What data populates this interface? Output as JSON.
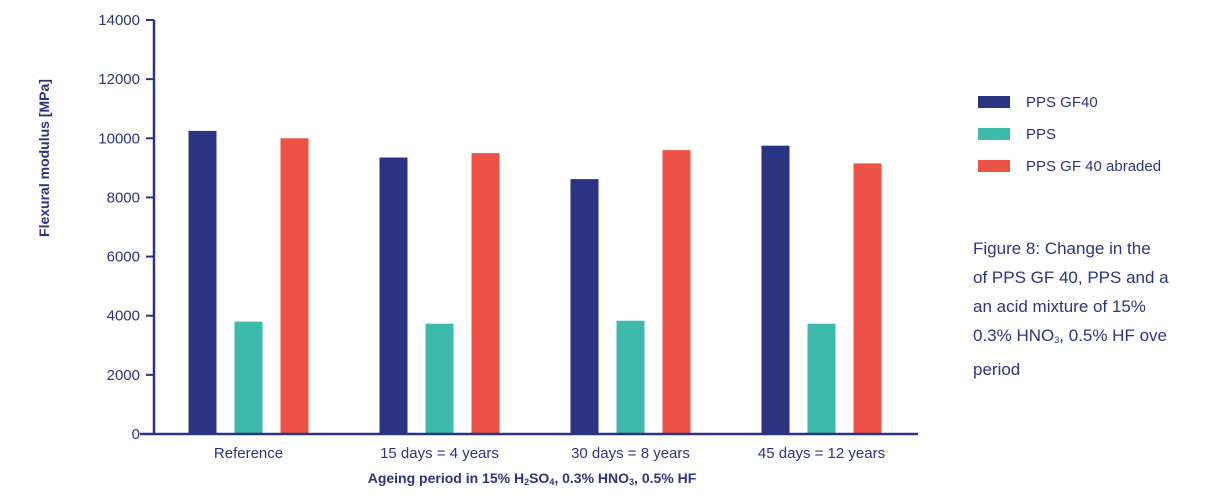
{
  "chart_data": {
    "type": "bar",
    "categories": [
      "Reference",
      "15 days = 4 years",
      "30 days = 8 years",
      "45 days = 12 years"
    ],
    "series": [
      {
        "name": "PPS GF40",
        "color": "#2b3483",
        "values": [
          10250,
          9350,
          8620,
          9750
        ]
      },
      {
        "name": "PPS",
        "color": "#3cbaab",
        "values": [
          3800,
          3730,
          3830,
          3730
        ]
      },
      {
        "name": "PPS GF 40 abraded",
        "color": "#ec5246",
        "values": [
          10000,
          9500,
          9600,
          9150
        ]
      }
    ],
    "ylabel": "Flexural modulus [MPa]",
    "xlabel_parts": [
      "Ageing period in 15% H",
      "2",
      "SO",
      "4",
      ", 0.3% HNO",
      "3",
      ", 0.5% HF"
    ],
    "ylim": [
      0,
      14000
    ],
    "yticks": [
      0,
      2000,
      4000,
      6000,
      8000,
      10000,
      12000,
      14000
    ],
    "legend_position": "right",
    "grid": false
  },
  "caption": {
    "line1": "Figure 8: Change in the",
    "line2": "of PPS GF 40, PPS and a",
    "line3": "an acid mixture of 15%",
    "line4_a": "0.3% HNO",
    "line4_sub": "3",
    "line4_b": ", 0.5% HF ove",
    "line5": "period"
  }
}
